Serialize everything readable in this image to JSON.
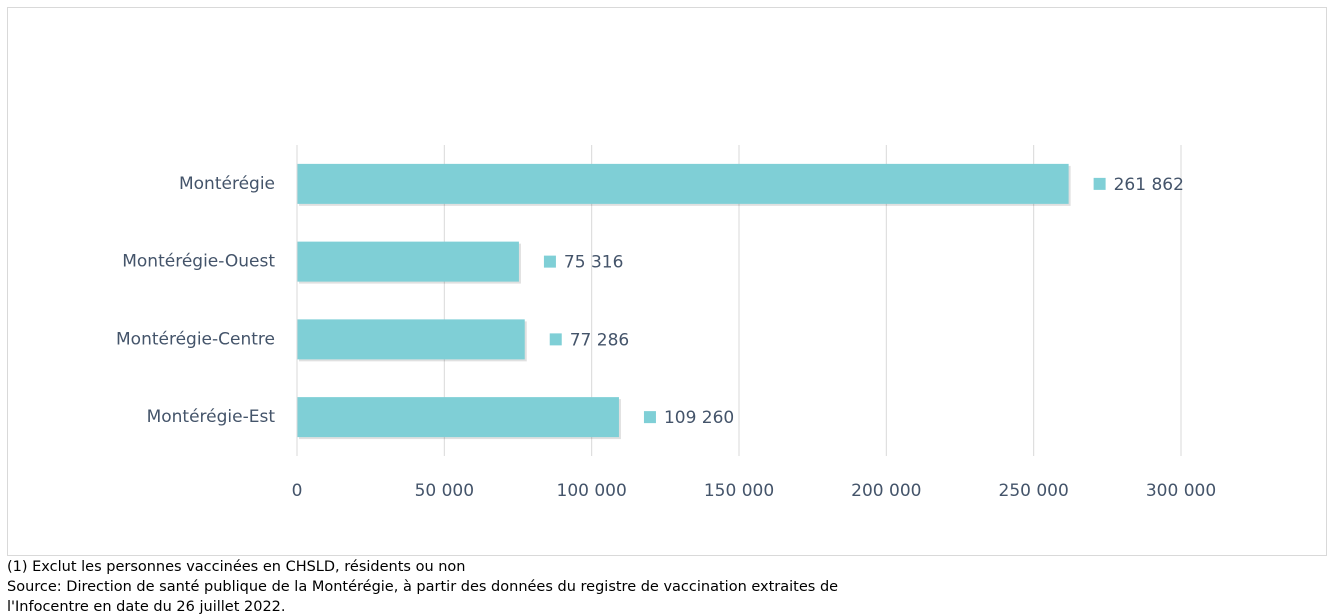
{
  "chart_data": {
    "type": "bar",
    "orientation": "horizontal",
    "categories": [
      "Montérégie",
      "Montérégie-Ouest",
      "Montérégie-Centre",
      "Montérégie-Est"
    ],
    "values": [
      261862,
      75316,
      77286,
      109260
    ],
    "value_labels": [
      "261 862",
      "75 316",
      "77 286",
      "109 260"
    ],
    "color": "#7fcfd6",
    "xlim": [
      0,
      300000
    ],
    "xticks": [
      0,
      {
        "value": 50000,
        "label": "50 000"
      },
      {
        "value": 100000,
        "label": "100 000"
      },
      {
        "value": 150000,
        "label": "150 000"
      },
      {
        "value": 200000,
        "label": "200 000"
      },
      {
        "value": 250000,
        "label": "250 000"
      },
      {
        "value": 300000,
        "label": "300 000"
      }
    ],
    "grid": true,
    "notes": [
      "(1) Exclut les personnes vaccinées en CHSLD, résidents ou non",
      "Source: Direction de santé publique de la Montérégie, à partir des données du registre de vaccination extraites de",
      "l'Infocentre en date du 26 juillet 2022."
    ]
  }
}
